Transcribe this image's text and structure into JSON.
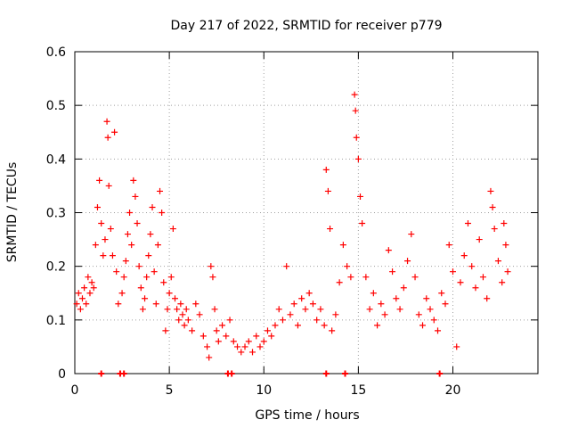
{
  "chart_data": {
    "type": "scatter",
    "title": "Day 217 of 2022, SRMTID for receiver p779",
    "xlabel": "GPS time / hours",
    "ylabel": "SRMTID / TECUs",
    "xlim": [
      0,
      24.5
    ],
    "ylim": [
      0,
      0.6
    ],
    "xticks": [
      0,
      5,
      10,
      15,
      20
    ],
    "yticks": [
      0,
      0.1,
      0.2,
      0.3,
      0.4,
      0.5,
      0.6
    ],
    "xtick_labels": [
      "0",
      "5",
      "10",
      "15",
      "20"
    ],
    "ytick_labels": [
      "0",
      "0.1",
      "0.2",
      "0.3",
      "0.4",
      "0.5",
      "0.6"
    ],
    "grid": true,
    "marker": "+",
    "marker_color": "#ff0000",
    "zero_markers_x": [
      1.4,
      2.4,
      2.6,
      8.1,
      8.3,
      13.3,
      14.3,
      19.3
    ],
    "series": [
      {
        "name": "SRMTID",
        "color": "#ff0000",
        "points": [
          [
            0.1,
            0.13
          ],
          [
            0.2,
            0.15
          ],
          [
            0.3,
            0.12
          ],
          [
            0.4,
            0.14
          ],
          [
            0.5,
            0.16
          ],
          [
            0.6,
            0.13
          ],
          [
            0.7,
            0.18
          ],
          [
            0.8,
            0.15
          ],
          [
            0.9,
            0.17
          ],
          [
            1.0,
            0.16
          ],
          [
            1.1,
            0.24
          ],
          [
            1.2,
            0.31
          ],
          [
            1.3,
            0.36
          ],
          [
            1.4,
            0.28
          ],
          [
            1.5,
            0.22
          ],
          [
            1.6,
            0.25
          ],
          [
            1.7,
            0.47
          ],
          [
            1.75,
            0.44
          ],
          [
            1.8,
            0.35
          ],
          [
            1.9,
            0.27
          ],
          [
            2.0,
            0.22
          ],
          [
            2.1,
            0.45
          ],
          [
            2.2,
            0.19
          ],
          [
            2.3,
            0.13
          ],
          [
            2.5,
            0.15
          ],
          [
            2.6,
            0.18
          ],
          [
            2.7,
            0.21
          ],
          [
            2.8,
            0.26
          ],
          [
            2.9,
            0.3
          ],
          [
            3.0,
            0.24
          ],
          [
            3.1,
            0.36
          ],
          [
            3.2,
            0.33
          ],
          [
            3.3,
            0.28
          ],
          [
            3.4,
            0.2
          ],
          [
            3.5,
            0.16
          ],
          [
            3.6,
            0.12
          ],
          [
            3.7,
            0.14
          ],
          [
            3.8,
            0.18
          ],
          [
            3.9,
            0.22
          ],
          [
            4.0,
            0.26
          ],
          [
            4.1,
            0.31
          ],
          [
            4.2,
            0.19
          ],
          [
            4.3,
            0.13
          ],
          [
            4.4,
            0.24
          ],
          [
            4.5,
            0.34
          ],
          [
            4.6,
            0.3
          ],
          [
            4.7,
            0.17
          ],
          [
            4.8,
            0.08
          ],
          [
            4.9,
            0.12
          ],
          [
            5.0,
            0.15
          ],
          [
            5.1,
            0.18
          ],
          [
            5.2,
            0.27
          ],
          [
            5.3,
            0.14
          ],
          [
            5.4,
            0.12
          ],
          [
            5.5,
            0.1
          ],
          [
            5.6,
            0.13
          ],
          [
            5.7,
            0.11
          ],
          [
            5.8,
            0.09
          ],
          [
            5.9,
            0.12
          ],
          [
            6.0,
            0.1
          ],
          [
            6.2,
            0.08
          ],
          [
            6.4,
            0.13
          ],
          [
            6.6,
            0.11
          ],
          [
            6.8,
            0.07
          ],
          [
            7.0,
            0.05
          ],
          [
            7.1,
            0.03
          ],
          [
            7.2,
            0.2
          ],
          [
            7.3,
            0.18
          ],
          [
            7.4,
            0.12
          ],
          [
            7.5,
            0.08
          ],
          [
            7.6,
            0.06
          ],
          [
            7.8,
            0.09
          ],
          [
            8.0,
            0.07
          ],
          [
            8.2,
            0.1
          ],
          [
            8.4,
            0.06
          ],
          [
            8.6,
            0.05
          ],
          [
            8.8,
            0.04
          ],
          [
            9.0,
            0.05
          ],
          [
            9.2,
            0.06
          ],
          [
            9.4,
            0.04
          ],
          [
            9.6,
            0.07
          ],
          [
            9.8,
            0.05
          ],
          [
            10.0,
            0.06
          ],
          [
            10.2,
            0.08
          ],
          [
            10.4,
            0.07
          ],
          [
            10.6,
            0.09
          ],
          [
            10.8,
            0.12
          ],
          [
            11.0,
            0.1
          ],
          [
            11.2,
            0.2
          ],
          [
            11.4,
            0.11
          ],
          [
            11.6,
            0.13
          ],
          [
            11.8,
            0.09
          ],
          [
            12.0,
            0.14
          ],
          [
            12.2,
            0.12
          ],
          [
            12.4,
            0.15
          ],
          [
            12.6,
            0.13
          ],
          [
            12.8,
            0.1
          ],
          [
            13.0,
            0.12
          ],
          [
            13.2,
            0.09
          ],
          [
            13.3,
            0.38
          ],
          [
            13.4,
            0.34
          ],
          [
            13.5,
            0.27
          ],
          [
            13.6,
            0.08
          ],
          [
            13.8,
            0.11
          ],
          [
            14.0,
            0.17
          ],
          [
            14.2,
            0.24
          ],
          [
            14.4,
            0.2
          ],
          [
            14.6,
            0.18
          ],
          [
            14.8,
            0.52
          ],
          [
            14.85,
            0.49
          ],
          [
            14.9,
            0.44
          ],
          [
            15.0,
            0.4
          ],
          [
            15.1,
            0.33
          ],
          [
            15.2,
            0.28
          ],
          [
            15.4,
            0.18
          ],
          [
            15.6,
            0.12
          ],
          [
            15.8,
            0.15
          ],
          [
            16.0,
            0.09
          ],
          [
            16.2,
            0.13
          ],
          [
            16.4,
            0.11
          ],
          [
            16.6,
            0.23
          ],
          [
            16.8,
            0.19
          ],
          [
            17.0,
            0.14
          ],
          [
            17.2,
            0.12
          ],
          [
            17.4,
            0.16
          ],
          [
            17.6,
            0.21
          ],
          [
            17.8,
            0.26
          ],
          [
            18.0,
            0.18
          ],
          [
            18.2,
            0.11
          ],
          [
            18.4,
            0.09
          ],
          [
            18.6,
            0.14
          ],
          [
            18.8,
            0.12
          ],
          [
            19.0,
            0.1
          ],
          [
            19.2,
            0.08
          ],
          [
            19.4,
            0.15
          ],
          [
            19.6,
            0.13
          ],
          [
            19.8,
            0.24
          ],
          [
            20.0,
            0.19
          ],
          [
            20.2,
            0.05
          ],
          [
            20.4,
            0.17
          ],
          [
            20.6,
            0.22
          ],
          [
            20.8,
            0.28
          ],
          [
            21.0,
            0.2
          ],
          [
            21.2,
            0.16
          ],
          [
            21.4,
            0.25
          ],
          [
            21.6,
            0.18
          ],
          [
            21.8,
            0.14
          ],
          [
            22.0,
            0.34
          ],
          [
            22.1,
            0.31
          ],
          [
            22.2,
            0.27
          ],
          [
            22.4,
            0.21
          ],
          [
            22.6,
            0.17
          ],
          [
            22.7,
            0.28
          ],
          [
            22.8,
            0.24
          ],
          [
            22.9,
            0.19
          ]
        ]
      }
    ]
  }
}
